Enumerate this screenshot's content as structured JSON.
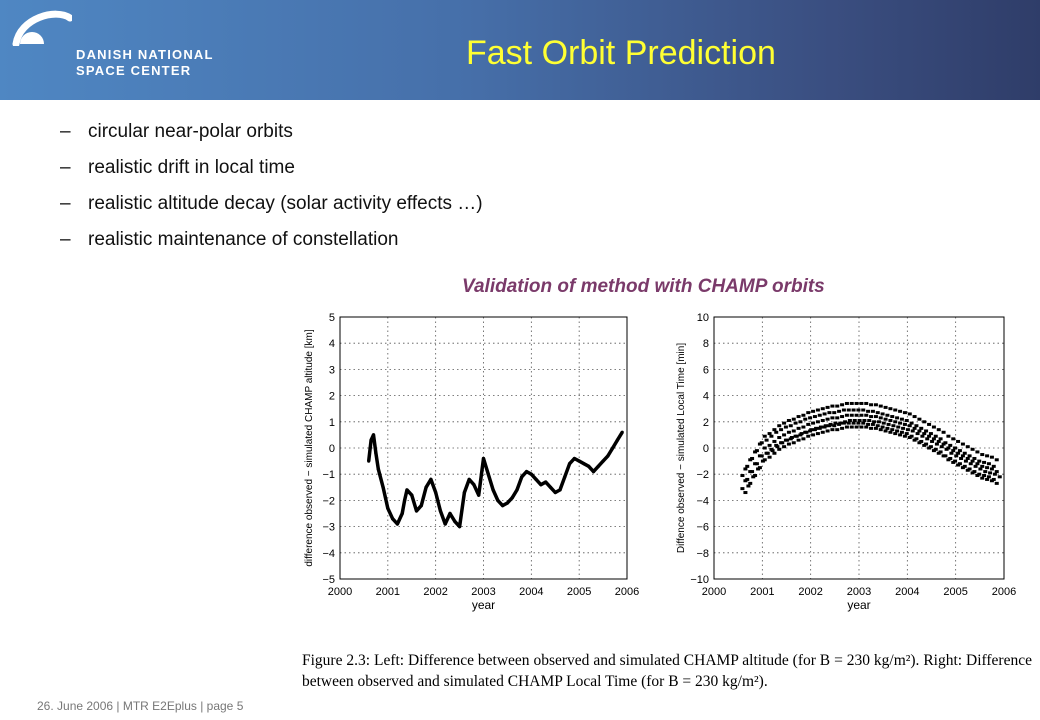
{
  "header": {
    "logo_line1": "DANISH NATIONAL",
    "logo_line2": "SPACE CENTER",
    "title": "Fast Orbit Prediction",
    "title_color": "#ffff33"
  },
  "bullets": [
    "circular near-polar orbits",
    "realistic drift in local time",
    "realistic altitude decay (solar activity effects …)",
    "realistic maintenance of constellation"
  ],
  "bullet_marker": "–",
  "subtitle": "Validation of method with CHAMP orbits",
  "chart_data": [
    {
      "type": "line",
      "xlabel": "year",
      "ylabel": "difference observed − simulated CHAMP altitude [km]",
      "xlim": [
        2000,
        2006
      ],
      "ylim": [
        -5,
        5
      ],
      "x_ticks": [
        "2000",
        "2001",
        "2002",
        "2003",
        "2004",
        "2005",
        "2006"
      ],
      "y_ticks": [
        "5",
        "4",
        "3",
        "2",
        "1",
        "0",
        "−1",
        "−2",
        "−3",
        "−4",
        "−5"
      ],
      "grid": true,
      "x": [
        2000.6,
        2000.65,
        2000.7,
        2000.75,
        2000.8,
        2000.9,
        2001.0,
        2001.1,
        2001.2,
        2001.3,
        2001.35,
        2001.4,
        2001.5,
        2001.6,
        2001.7,
        2001.8,
        2001.9,
        2002.0,
        2002.1,
        2002.2,
        2002.3,
        2002.4,
        2002.5,
        2002.6,
        2002.7,
        2002.8,
        2002.9,
        2003.0,
        2003.1,
        2003.2,
        2003.3,
        2003.4,
        2003.5,
        2003.6,
        2003.7,
        2003.8,
        2003.9,
        2004.0,
        2004.1,
        2004.2,
        2004.3,
        2004.4,
        2004.5,
        2004.6,
        2004.7,
        2004.8,
        2004.9,
        2005.0,
        2005.1,
        2005.2,
        2005.3,
        2005.4,
        2005.5,
        2005.6,
        2005.7,
        2005.8,
        2005.9
      ],
      "y": [
        -0.5,
        0.3,
        0.5,
        -0.2,
        -0.8,
        -1.5,
        -2.3,
        -2.7,
        -2.9,
        -2.5,
        -2.0,
        -1.6,
        -1.8,
        -2.4,
        -2.2,
        -1.5,
        -1.2,
        -1.7,
        -2.4,
        -2.9,
        -2.5,
        -2.8,
        -3.0,
        -1.7,
        -1.2,
        -1.4,
        -1.8,
        -0.4,
        -1.0,
        -1.6,
        -2.0,
        -2.2,
        -2.1,
        -1.9,
        -1.6,
        -1.1,
        -0.9,
        -1.0,
        -1.2,
        -1.4,
        -1.3,
        -1.5,
        -1.7,
        -1.6,
        -1.1,
        -0.6,
        -0.4,
        -0.5,
        -0.6,
        -0.7,
        -0.9,
        -0.7,
        -0.5,
        -0.3,
        0.0,
        0.3,
        0.6
      ]
    },
    {
      "type": "scatter",
      "xlabel": "year",
      "ylabel": "Diffence observed − simulated Local Time [min]",
      "xlim": [
        2000,
        2006
      ],
      "ylim": [
        -10,
        10
      ],
      "x_ticks": [
        "2000",
        "2001",
        "2002",
        "2003",
        "2004",
        "2005",
        "2006"
      ],
      "y_ticks": [
        "10",
        "8",
        "6",
        "4",
        "2",
        "0",
        "−2",
        "−4",
        "−6",
        "−8",
        "−10"
      ],
      "grid": true,
      "x": [
        2000.65,
        2000.75,
        2000.85,
        2000.95,
        2001.05,
        2001.15,
        2001.25,
        2001.35,
        2001.45,
        2001.55,
        2001.65,
        2001.75,
        2001.85,
        2001.95,
        2002.05,
        2002.15,
        2002.25,
        2002.35,
        2002.45,
        2002.55,
        2002.65,
        2002.75,
        2002.85,
        2002.95,
        2003.05,
        2003.15,
        2003.25,
        2003.35,
        2003.45,
        2003.55,
        2003.65,
        2003.75,
        2003.85,
        2003.95,
        2004.05,
        2004.15,
        2004.25,
        2004.35,
        2004.45,
        2004.55,
        2004.65,
        2004.75,
        2004.85,
        2004.95,
        2005.05,
        2005.15,
        2005.25,
        2005.35,
        2005.45,
        2005.55,
        2005.65,
        2005.75,
        2005.85
      ],
      "y": [
        -2.5,
        -1.8,
        -1.2,
        -0.6,
        0.0,
        0.2,
        0.5,
        0.8,
        1.0,
        1.2,
        1.3,
        1.5,
        1.6,
        1.8,
        1.9,
        2.0,
        2.1,
        2.2,
        2.3,
        2.3,
        2.4,
        2.5,
        2.5,
        2.5,
        2.5,
        2.5,
        2.4,
        2.4,
        2.3,
        2.2,
        2.1,
        2.0,
        1.9,
        1.8,
        1.7,
        1.5,
        1.3,
        1.1,
        0.9,
        0.7,
        0.5,
        0.3,
        0.0,
        -0.2,
        -0.4,
        -0.6,
        -0.8,
        -1.0,
        -1.2,
        -1.4,
        -1.5,
        -1.6,
        -1.8
      ]
    }
  ],
  "caption": "Figure 2.3:  Left:  Difference between observed and simulated CHAMP altitude (for B = 230 kg/m²).  Right:  Difference between observed and simulated CHAMP Local Time (for B = 230 kg/m²).",
  "footer": "26. June  2006 | MTR  E2Eplus | page 5"
}
